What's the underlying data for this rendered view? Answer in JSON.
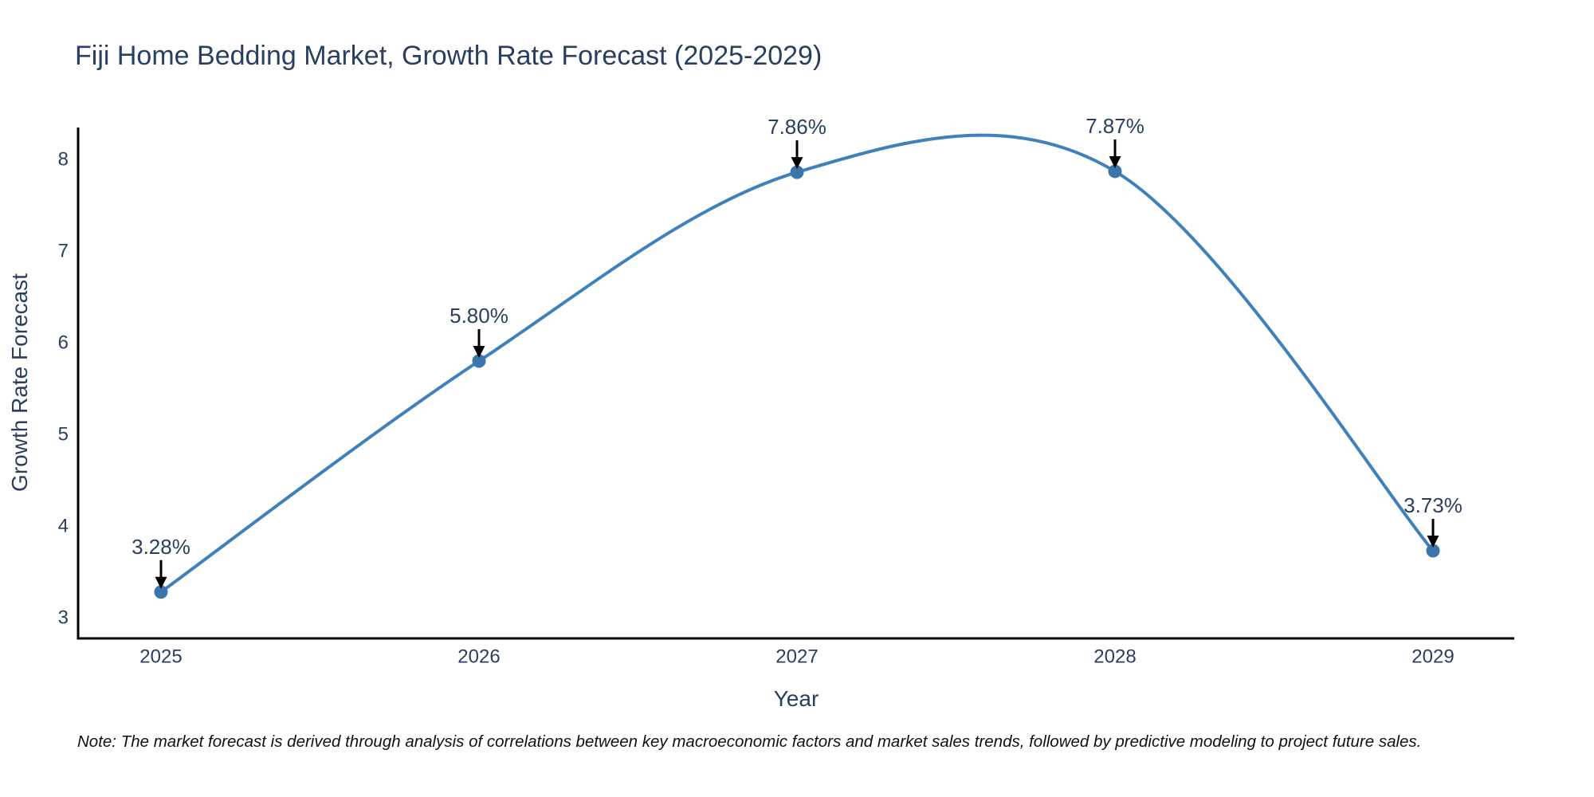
{
  "title": "Fiji Home Bedding Market, Growth Rate Forecast (2025-2029)",
  "note": "Note: The market forecast is derived through analysis of correlations between key macroeconomic factors and market sales trends, followed by predictive modeling to project future sales.",
  "chart_data": {
    "type": "line",
    "line_shape": "spline",
    "title": "Fiji Home Bedding Market, Growth Rate Forecast (2025-2029)",
    "xlabel": "Year",
    "ylabel": "Growth Rate Forecast",
    "categories": [
      "2025",
      "2026",
      "2027",
      "2028",
      "2029"
    ],
    "values": [
      3.28,
      5.8,
      7.86,
      7.87,
      3.73
    ],
    "point_labels": [
      "3.28%",
      "5.80%",
      "7.86%",
      "7.87%",
      "3.73%"
    ],
    "yticks": [
      3,
      4,
      5,
      6,
      7,
      8
    ],
    "ylim": [
      2.77,
      8.35
    ],
    "grid": false,
    "legend_position": "none",
    "annotation_style": "label-with-down-arrow",
    "colors": {
      "line": "#3f81bb",
      "marker": "#3a76ac",
      "axis": "#000000",
      "text": "#2a3f5f",
      "annotation_text": "#2a3f5f",
      "arrow": "#000000",
      "note_text": "#111111",
      "background": "#ffffff"
    }
  }
}
